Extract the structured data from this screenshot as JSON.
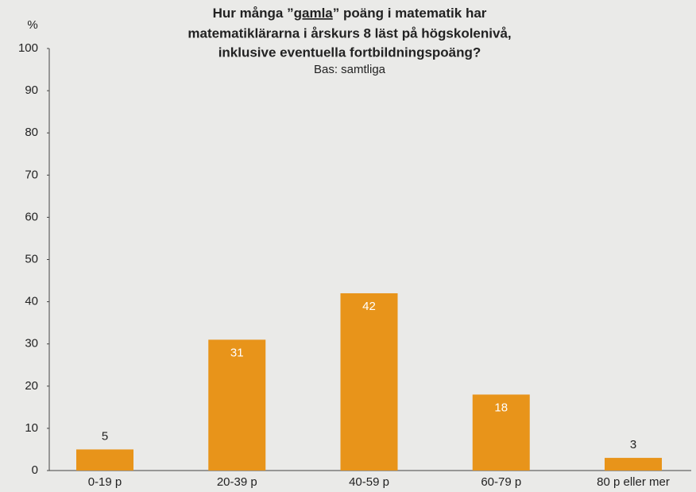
{
  "chart_data": {
    "type": "bar",
    "title": [
      [
        "Hur många ”",
        "gamla",
        "” poäng i matematik har"
      ],
      "matematiklärarna i årskurs 8 läst på högskolenivå,",
      "inklusive eventuella fortbildningspoäng?"
    ],
    "subtitle": "Bas: samtliga",
    "y_label": "%",
    "categories": [
      "0-19 p",
      "20-39 p",
      "40-59 p",
      "60-79 p",
      "80 p eller mer"
    ],
    "values": [
      5,
      31,
      42,
      18,
      3
    ],
    "color": "#e8941a",
    "ylim": [
      0,
      100
    ],
    "yticks": [
      0,
      10,
      20,
      30,
      40,
      50,
      60,
      70,
      80,
      90,
      100
    ],
    "grid": false
  }
}
